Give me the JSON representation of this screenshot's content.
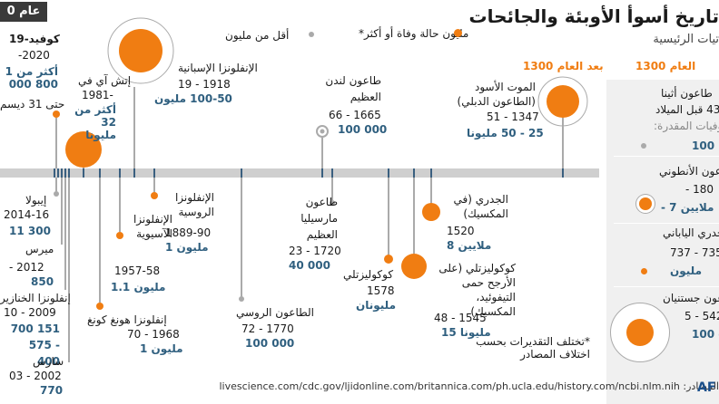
{
  "year_badge": "عام 0",
  "title": "تاريخ أسوأ الأوبئة والجائحات",
  "subtitle": "تيات الرئيسية",
  "legend": {
    "item1": "مليون حالة وفاة أو أكثر*",
    "item2": "أقل من مليون",
    "item3": "بعد العام 1300",
    "item4": "العام 1300"
  },
  "colors": {
    "orange": "#f07d12",
    "gray": "#999999",
    "blue": "#2f5f7f",
    "bar": "#cfcfcf"
  },
  "events": [
    {
      "name": "كوفيد-19",
      "date": "2020-",
      "deaths": "أكثر من 1 800 000",
      "note": "حتى 31 ديسم"
    },
    {
      "name": "إتش آي في",
      "date": "-1981",
      "deaths": "أكثر من 32 مليونا"
    },
    {
      "name": "الإنفلونزا الإسبانية",
      "date": "1918 - 19",
      "deaths": "100-50 مليون"
    },
    {
      "name": "طاعون لندن العظيم",
      "date": "1665 - 66",
      "deaths": "100 000"
    },
    {
      "name": "الموت الأسود (الطاعون الدبلي)",
      "date": "1347 - 51",
      "deaths": "25 - 50 مليونا"
    },
    {
      "name": "إيبولا",
      "date": "2014-16",
      "deaths": "11 300"
    },
    {
      "name": "ميرس",
      "date": "2012 -",
      "deaths": "850"
    },
    {
      "name": "إنفلونزا الخنازير",
      "date": "2009 - 10",
      "deaths": "151 700 - 575 400"
    },
    {
      "name": "سارس",
      "date": "2002 - 03",
      "deaths": "770"
    },
    {
      "name": "إنفلونزا هونغ كونغ",
      "date": "1968 - 70",
      "deaths": "1 مليون"
    },
    {
      "name": "الإنفلونزا الآسيوية",
      "date": "1957-58",
      "deaths": "1.1 مليون"
    },
    {
      "name": "الإنفلونزا الروسية",
      "date": "1889-90",
      "deaths": "1 مليون"
    },
    {
      "name": "الطاعون الروسي",
      "date": "1770 - 72",
      "deaths": "100 000"
    },
    {
      "name": "طاعون مارسيليا العظيم",
      "date": "1720 - 23",
      "deaths": "40 000"
    },
    {
      "name": "كوكوليزتلي",
      "date": "1578",
      "deaths": "مليونان"
    },
    {
      "name": "كوكوليزتلي (على الأرجح حمى التيفوئيد، المكسيك)",
      "date": "1545 - 48",
      "deaths": "15 مليونا"
    },
    {
      "name": "الجدري (في المكسيك)",
      "date": "1520",
      "deaths": "8 ملايين"
    }
  ],
  "panel_events": [
    {
      "name": "طاعون أثينا",
      "date": "430 قبل الميلاد",
      "deaths_label": "الوفيات المقدرة:",
      "deaths": "100"
    },
    {
      "name": "الطاعون الأنطوني",
      "date": "180 -",
      "deaths": "- 7 ملايين"
    },
    {
      "name": "الجدري الياباني",
      "date": "735 - 737",
      "deaths": "مليون"
    },
    {
      "name": "طاعون جستنيان",
      "date": "542 - 5",
      "deaths": "100 -"
    }
  ],
  "note": "*تختلف التقديرات بحسب اختلاف المصادر",
  "footer": "المصادر: livescience.com/cdc.gov/ljidonline.com/britannica.com/ph.ucla.edu/history.com/ncbi.nlm.nih",
  "logo": "AF",
  "chart_data": {
    "type": "scatter",
    "title": "تاريخ أسوأ الأوبئة والجائحات",
    "x_label": "",
    "points": [
      {
        "name": "كوفيد-19",
        "year": 2020,
        "deaths_millions": 1.8
      },
      {
        "name": "إتش آي في",
        "year": 1981,
        "deaths_millions": 32
      },
      {
        "name": "الإنفلونزا الإسبانية",
        "year": 1918,
        "deaths_millions": 75
      },
      {
        "name": "طاعون لندن العظيم",
        "year": 1665,
        "deaths_millions": 0.1
      },
      {
        "name": "الموت الأسود",
        "year": 1347,
        "deaths_millions": 37.5
      },
      {
        "name": "إيبولا",
        "year": 2014,
        "deaths_millions": 0.0113
      },
      {
        "name": "ميرس",
        "year": 2012,
        "deaths_millions": 0.00085
      },
      {
        "name": "إنفلونزا الخنازير",
        "year": 2009,
        "deaths_millions": 0.36
      },
      {
        "name": "سارس",
        "year": 2002,
        "deaths_millions": 0.00077
      },
      {
        "name": "إنفلونزا هونغ كونغ",
        "year": 1968,
        "deaths_millions": 1
      },
      {
        "name": "الإنفلونزا الآسيوية",
        "year": 1957,
        "deaths_millions": 1.1
      },
      {
        "name": "الإنفلونزا الروسية",
        "year": 1889,
        "deaths_millions": 1
      },
      {
        "name": "الطاعون الروسي",
        "year": 1770,
        "deaths_millions": 0.1
      },
      {
        "name": "طاعون مارسيليا العظيم",
        "year": 1720,
        "deaths_millions": 0.04
      },
      {
        "name": "كوكوليزتلي 1578",
        "year": 1578,
        "deaths_millions": 2
      },
      {
        "name": "كوكوليزتلي 1545",
        "year": 1545,
        "deaths_millions": 15
      },
      {
        "name": "الجدري (في المكسيك)",
        "year": 1520,
        "deaths_millions": 8
      }
    ]
  }
}
